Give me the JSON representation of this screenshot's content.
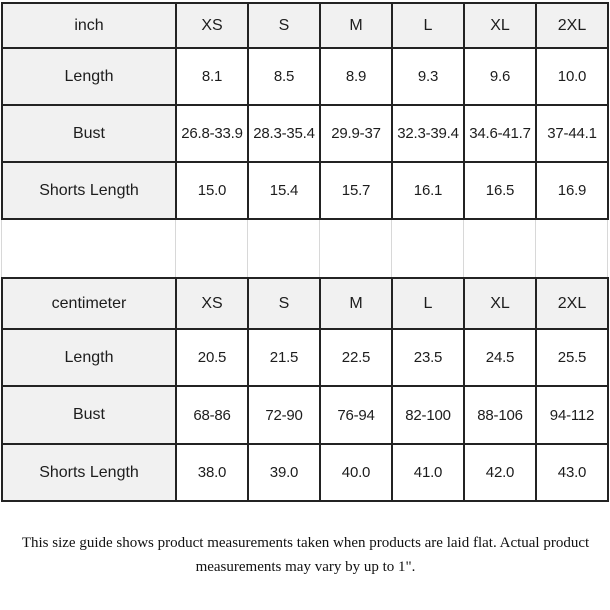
{
  "chart_data": [
    {
      "type": "table",
      "unit_label": "inch",
      "sizes": [
        "XS",
        "S",
        "M",
        "L",
        "XL",
        "2XL"
      ],
      "rows": [
        {
          "label": "Length",
          "values": [
            "8.1",
            "8.5",
            "8.9",
            "9.3",
            "9.6",
            "10.0"
          ]
        },
        {
          "label": "Bust",
          "values": [
            "26.8-33.9",
            "28.3-35.4",
            "29.9-37",
            "32.3-39.4",
            "34.6-41.7",
            "37-44.1"
          ]
        },
        {
          "label": "Shorts Length",
          "values": [
            "15.0",
            "15.4",
            "15.7",
            "16.1",
            "16.5",
            "16.9"
          ]
        }
      ]
    },
    {
      "type": "table",
      "unit_label": "centimeter",
      "sizes": [
        "XS",
        "S",
        "M",
        "L",
        "XL",
        "2XL"
      ],
      "rows": [
        {
          "label": "Length",
          "values": [
            "20.5",
            "21.5",
            "22.5",
            "23.5",
            "24.5",
            "25.5"
          ]
        },
        {
          "label": "Bust",
          "values": [
            "68-86",
            "72-90",
            "76-94",
            "82-100",
            "88-106",
            "94-112"
          ]
        },
        {
          "label": "Shorts Length",
          "values": [
            "38.0",
            "39.0",
            "40.0",
            "41.0",
            "42.0",
            "43.0"
          ]
        }
      ]
    }
  ],
  "footer": {
    "line1": "This size guide shows product measurements taken when products are laid flat. Actual product",
    "line2": "measurements may vary by up to 1\"."
  },
  "colors": {
    "header_bg": "#f1f1f1",
    "grid_border": "#232323",
    "spacer_line": "#d8d8d8",
    "text": "#1d1d1d"
  }
}
